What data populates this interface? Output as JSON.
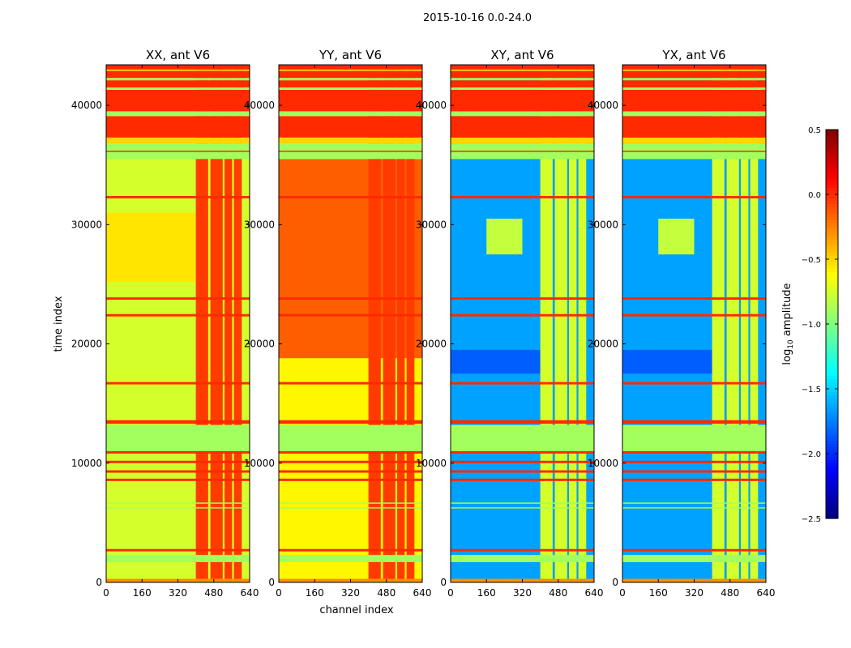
{
  "chart_data": {
    "type": "heatmap",
    "suptitle": "2015-10-16 0.0-24.0",
    "xlabel": "channel index",
    "ylabel": "time index",
    "xlim": [
      0,
      640
    ],
    "ylim": [
      0,
      43400
    ],
    "xticks": [
      0,
      160,
      320,
      480,
      640
    ],
    "yticks": [
      0,
      10000,
      20000,
      30000,
      40000
    ],
    "colormap": "jet",
    "colorbar": {
      "label": "log10 amplitude",
      "label_main": "log",
      "label_sub": "10",
      "label_rest": " amplitude",
      "range": [
        -2.5,
        0.5
      ],
      "ticks": [
        "0.5",
        "0.0",
        "−0.5",
        "−1.0",
        "−1.5",
        "−2.0",
        "−2.5"
      ],
      "tick_values": [
        0.5,
        0.0,
        -0.5,
        -1.0,
        -1.5,
        -2.0,
        -2.5
      ]
    },
    "hot_channels": [
      [
        400,
        455
      ],
      [
        465,
        520
      ],
      [
        528,
        562
      ],
      [
        570,
        605
      ]
    ],
    "shared_bands": [
      [
        0,
        300,
        -0.3
      ],
      [
        1700,
        2300,
        -0.9
      ],
      [
        2600,
        2800,
        0.0
      ],
      [
        6200,
        6300,
        -0.9
      ],
      [
        6600,
        6700,
        -0.9
      ],
      [
        8500,
        8700,
        0.0
      ],
      [
        9200,
        9400,
        0.0
      ],
      [
        10000,
        10200,
        0.0
      ],
      [
        10800,
        11000,
        0.0
      ],
      [
        11000,
        13200,
        -0.9
      ],
      [
        13300,
        13600,
        0.0
      ],
      [
        16600,
        16800,
        0.0
      ],
      [
        22300,
        22500,
        0.0
      ],
      [
        23700,
        23900,
        0.0
      ],
      [
        32200,
        32400,
        0.0
      ],
      [
        35500,
        36800,
        -0.9
      ],
      [
        36100,
        36200,
        0.0
      ],
      [
        36800,
        37300,
        -0.5
      ],
      [
        37300,
        39100,
        0.0
      ],
      [
        39100,
        39500,
        -0.9
      ],
      [
        39500,
        41300,
        0.0
      ],
      [
        41300,
        41500,
        -0.9
      ],
      [
        41500,
        42100,
        0.0
      ],
      [
        42100,
        42300,
        -0.9
      ],
      [
        42300,
        42900,
        0.0
      ],
      [
        42900,
        43000,
        -0.6
      ],
      [
        43000,
        43400,
        0.0
      ]
    ],
    "panels": [
      {
        "title": "XX, ant V6",
        "base": -0.75,
        "hot": -0.05,
        "regions": [
          [
            25200,
            31000,
            0,
            400,
            -0.55
          ]
        ]
      },
      {
        "title": "YY, ant V6",
        "base": -0.6,
        "hot": -0.05,
        "regions": [
          [
            18800,
            35500,
            0,
            640,
            -0.15
          ]
        ]
      },
      {
        "title": "XY, ant V6",
        "base": -1.65,
        "hot": -0.75,
        "regions": [
          [
            27500,
            30500,
            160,
            320,
            -0.8
          ],
          [
            17500,
            19500,
            0,
            400,
            -1.85
          ]
        ]
      },
      {
        "title": "YX, ant V6",
        "base": -1.65,
        "hot": -0.75,
        "regions": [
          [
            27500,
            30500,
            160,
            320,
            -0.8
          ],
          [
            17500,
            19500,
            0,
            400,
            -1.85
          ]
        ]
      }
    ]
  }
}
